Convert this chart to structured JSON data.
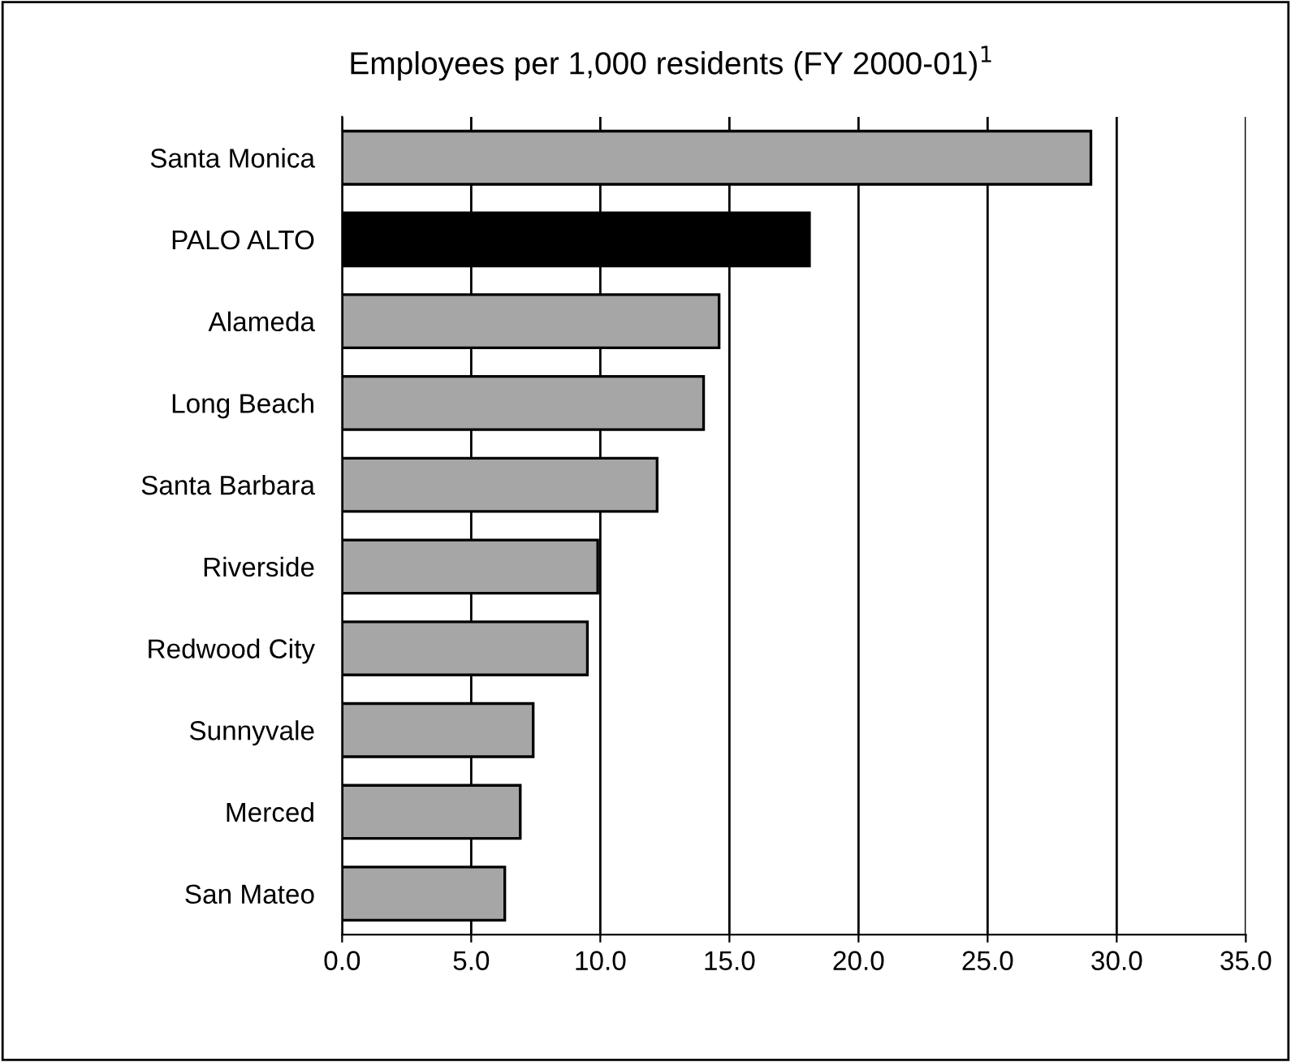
{
  "chart_data": {
    "type": "bar",
    "orientation": "horizontal",
    "title": "Employees per 1,000 residents (FY 2000-01)$^{1}$",
    "categories": [
      "Santa Monica",
      "PALO ALTO",
      "Alameda",
      "Long Beach",
      "Santa Barbara",
      "Riverside",
      "Redwood City",
      "Sunnyvale",
      "Merced",
      "San Mateo"
    ],
    "values": [
      29.0,
      18.1,
      14.6,
      14.0,
      12.2,
      9.9,
      9.5,
      7.4,
      6.9,
      6.3
    ],
    "colors": [
      "#a6a6a6",
      "#000000",
      "#a6a6a6",
      "#a6a6a6",
      "#a6a6a6",
      "#a6a6a6",
      "#a6a6a6",
      "#a6a6a6",
      "#a6a6a6",
      "#a6a6a6"
    ],
    "xlim": [
      0,
      35
    ],
    "xticks": [
      {
        "value": 0,
        "label": "0.0"
      },
      {
        "value": 5,
        "label": "5.0"
      },
      {
        "value": 10,
        "label": "10.0"
      },
      {
        "value": 15,
        "label": "15.0"
      },
      {
        "value": 20,
        "label": "20.0"
      },
      {
        "value": 25,
        "label": "25.0"
      },
      {
        "value": 30,
        "label": "30.0"
      },
      {
        "value": 35,
        "label": "35.0"
      }
    ],
    "grid": "x"
  }
}
